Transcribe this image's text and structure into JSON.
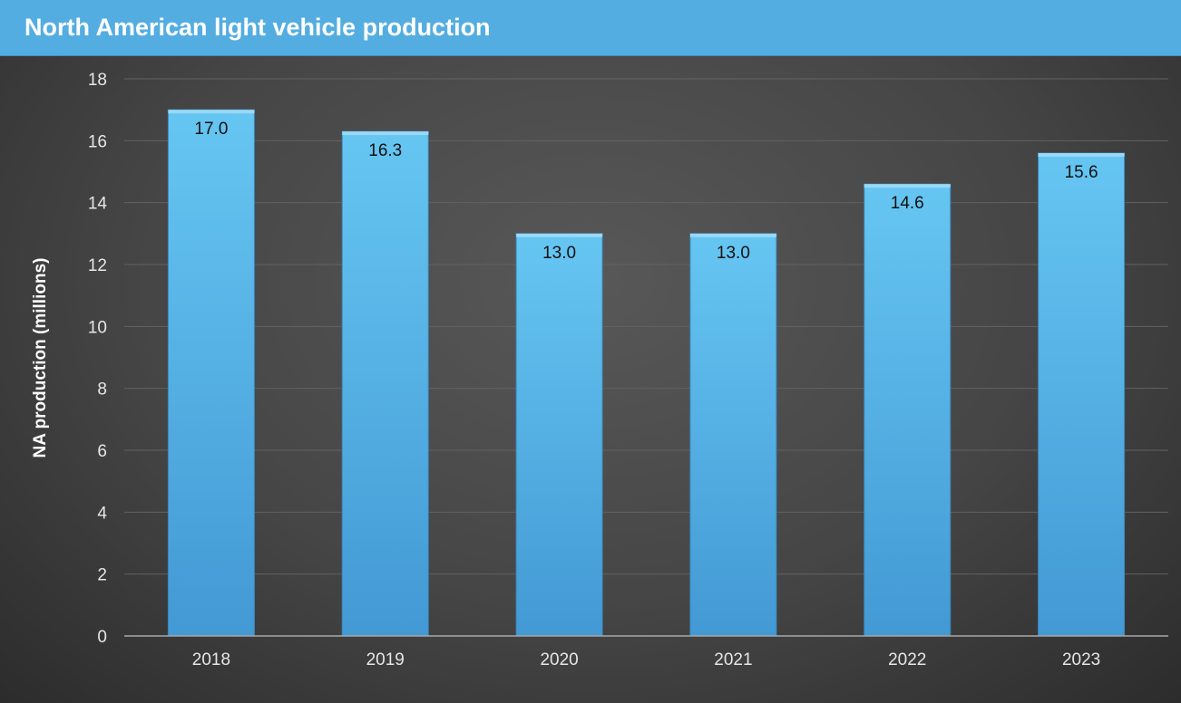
{
  "chart_data": {
    "type": "bar",
    "title": "North American light vehicle production",
    "xlabel": "",
    "ylabel": "NA production (millions)",
    "categories": [
      "2018",
      "2019",
      "2020",
      "2021",
      "2022",
      "2023"
    ],
    "values": [
      17.0,
      16.3,
      13.0,
      13.0,
      14.6,
      15.6
    ],
    "data_labels": [
      "17.0",
      "16.3",
      "13.0",
      "13.0",
      "14.6",
      "15.6"
    ],
    "ylim": [
      0,
      18
    ],
    "yticks": [
      0,
      2,
      4,
      6,
      8,
      10,
      12,
      14,
      16,
      18
    ],
    "grid": true,
    "legend": "none",
    "colors": {
      "bar": "#5bbcec",
      "title_bar": "#53ade1",
      "background": "#444444"
    }
  }
}
